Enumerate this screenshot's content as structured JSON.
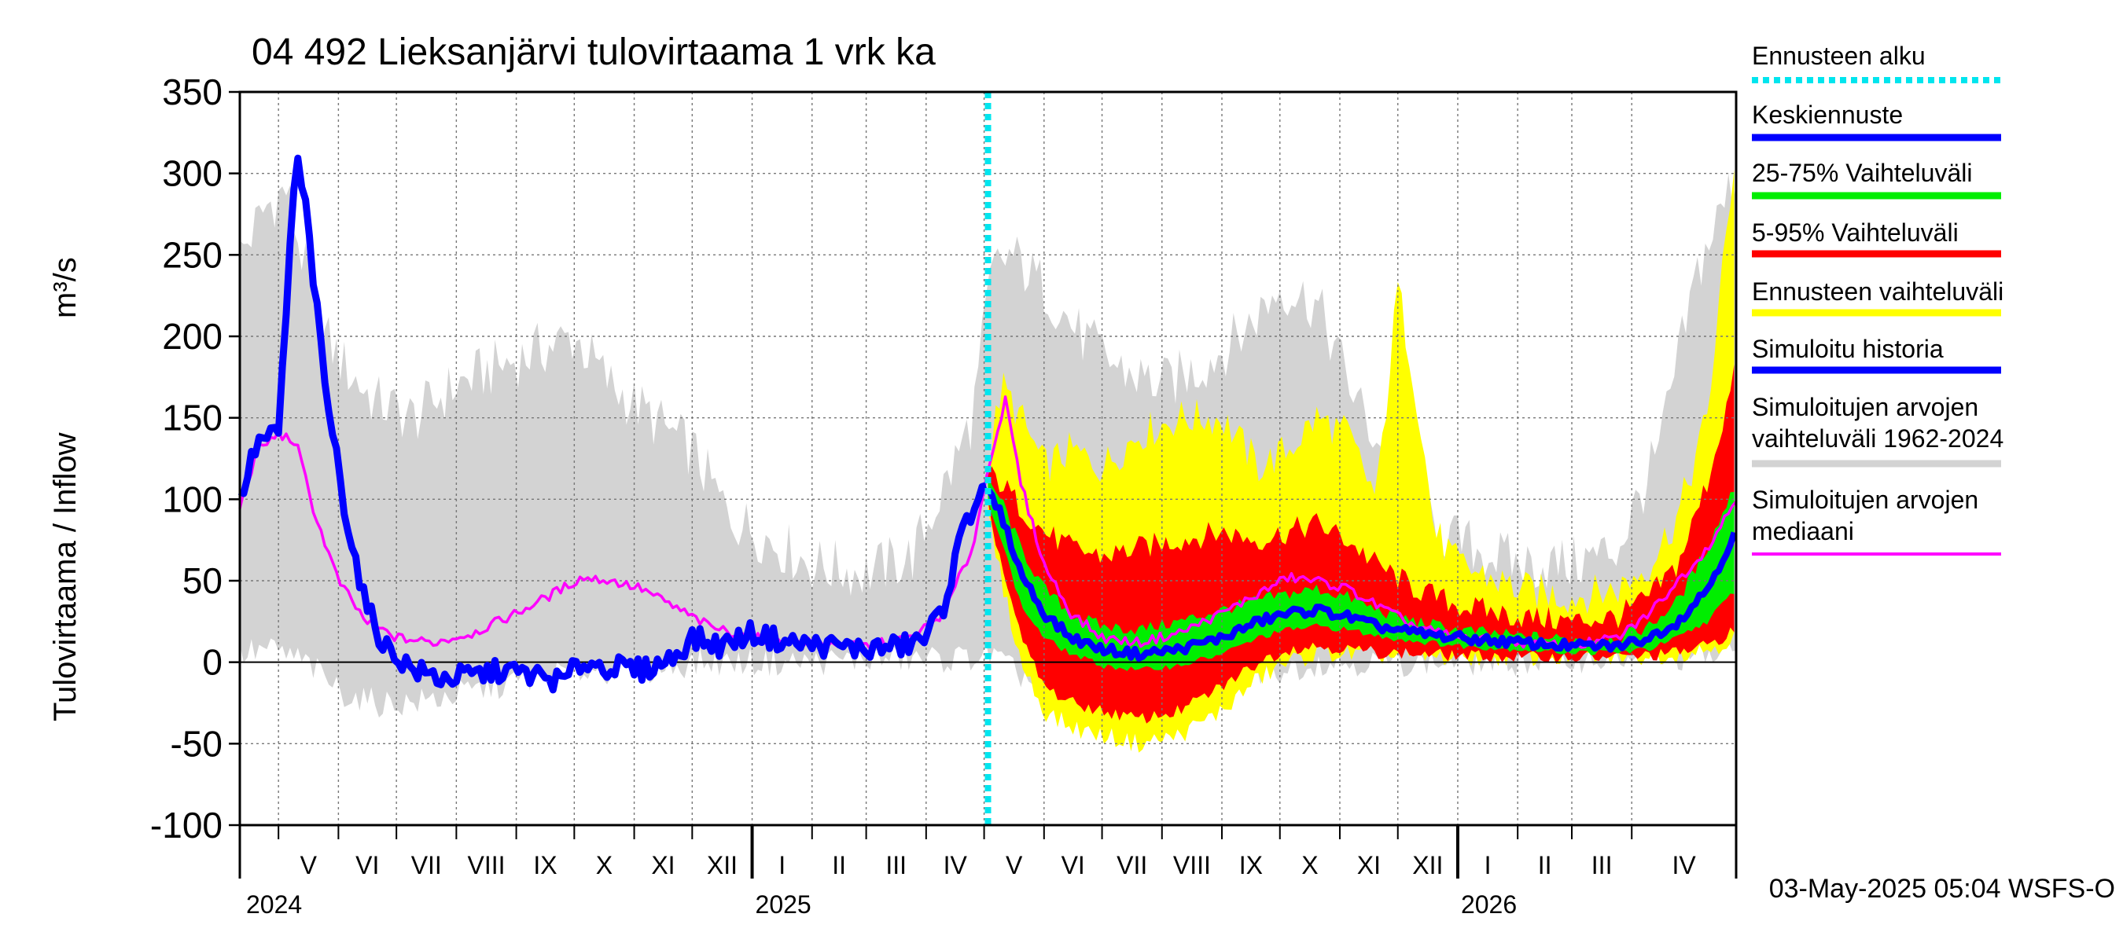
{
  "chart_data": {
    "type": "area",
    "title": "04 492 Lieksanjärvi tulovirtaama 1 vrk ka",
    "ylabel_main": "Tulovirtaama / Inflow",
    "ylabel_unit": "m³/s",
    "ylim": [
      -100,
      350
    ],
    "yticks": [
      "350",
      "300",
      "250",
      "200",
      "150",
      "100",
      "50",
      "0",
      "-50",
      "-100"
    ],
    "x_range": [
      "2024-04-11",
      "2026-05-25"
    ],
    "forecast_start": "2025-05-03",
    "grid": true,
    "legend_position": "right",
    "months": [
      {
        "label": "V",
        "start": "2024-05-01"
      },
      {
        "label": "VI",
        "start": "2024-06-01"
      },
      {
        "label": "VII",
        "start": "2024-07-01"
      },
      {
        "label": "VIII",
        "start": "2024-08-01"
      },
      {
        "label": "IX",
        "start": "2024-09-01"
      },
      {
        "label": "X",
        "start": "2024-10-01"
      },
      {
        "label": "XI",
        "start": "2024-11-01"
      },
      {
        "label": "XII",
        "start": "2024-12-01"
      },
      {
        "label": "I",
        "start": "2025-01-01"
      },
      {
        "label": "II",
        "start": "2025-02-01"
      },
      {
        "label": "III",
        "start": "2025-03-01"
      },
      {
        "label": "IV",
        "start": "2025-04-01"
      },
      {
        "label": "V",
        "start": "2025-05-01"
      },
      {
        "label": "VI",
        "start": "2025-06-01"
      },
      {
        "label": "VII",
        "start": "2025-07-01"
      },
      {
        "label": "VIII",
        "start": "2025-08-01"
      },
      {
        "label": "IX",
        "start": "2025-09-01"
      },
      {
        "label": "X",
        "start": "2025-10-01"
      },
      {
        "label": "XI",
        "start": "2025-11-01"
      },
      {
        "label": "XII",
        "start": "2025-12-01"
      },
      {
        "label": "I",
        "start": "2026-01-01"
      },
      {
        "label": "II",
        "start": "2026-02-01"
      },
      {
        "label": "III",
        "start": "2026-03-01"
      },
      {
        "label": "IV",
        "start": "2026-04-01"
      }
    ],
    "years": [
      {
        "label": "2024",
        "start": "2024-04-11"
      },
      {
        "label": "2025",
        "start": "2025-01-01"
      },
      {
        "label": "2026",
        "start": "2026-01-01"
      }
    ],
    "legend": [
      {
        "label": "Ennusteen alku",
        "color": "#00e5ee",
        "style": "dotted"
      },
      {
        "label": "Keskiennuste",
        "color": "#0000ff",
        "style": "solid"
      },
      {
        "label": "25-75% Vaihteluväli",
        "color": "#00ee00",
        "style": "solid"
      },
      {
        "label": "5-95% Vaihteluväli",
        "color": "#ff0000",
        "style": "solid"
      },
      {
        "label": "Ennusteen vaihteluväli",
        "color": "#ffff00",
        "style": "solid"
      },
      {
        "label": "Simuloitu historia",
        "color": "#0000ff",
        "style": "solid"
      },
      {
        "label": "Simuloitujen arvojen\nvaihteluväli 1962-2024",
        "color": "#d3d3d3",
        "style": "solid"
      },
      {
        "label": "Simuloitujen arvojen\nmediaani",
        "color": "#ff00ff",
        "style": "solid"
      }
    ],
    "series": {
      "historical_range_1962_2024": {
        "x": [
          "2024-04-11",
          "2024-04-25",
          "2024-05-05",
          "2024-05-15",
          "2024-05-25",
          "2024-06-05",
          "2024-06-20",
          "2024-07-10",
          "2024-08-01",
          "2024-08-20",
          "2024-09-10",
          "2024-10-01",
          "2024-10-20",
          "2024-11-10",
          "2024-12-01",
          "2024-12-20",
          "2025-01-10",
          "2025-02-01",
          "2025-03-01",
          "2025-03-25",
          "2025-04-15",
          "2025-04-25",
          "2025-05-05",
          "2025-05-15",
          "2025-06-01",
          "2025-06-20",
          "2025-07-10",
          "2025-08-01",
          "2025-08-20",
          "2025-09-10",
          "2025-10-01",
          "2025-10-20",
          "2025-11-10",
          "2025-12-01",
          "2025-12-20",
          "2026-01-10",
          "2026-02-01",
          "2026-03-01",
          "2026-03-25",
          "2026-04-15",
          "2026-05-05",
          "2026-05-25"
        ],
        "low": [
          5,
          8,
          5,
          0,
          -10,
          -20,
          -25,
          -25,
          -20,
          -15,
          -10,
          -5,
          -5,
          -5,
          0,
          0,
          0,
          0,
          2,
          2,
          2,
          3,
          5,
          -5,
          -15,
          -25,
          -30,
          -25,
          -20,
          -10,
          -5,
          0,
          0,
          0,
          0,
          0,
          0,
          2,
          2,
          2,
          3,
          5
        ],
        "high": [
          250,
          280,
          290,
          240,
          200,
          180,
          160,
          150,
          170,
          180,
          190,
          200,
          170,
          150,
          130,
          90,
          75,
          60,
          55,
          65,
          120,
          150,
          240,
          250,
          230,
          200,
          180,
          170,
          180,
          200,
          230,
          220,
          160,
          110,
          80,
          70,
          60,
          60,
          70,
          130,
          240,
          300
        ]
      },
      "simulated_history": {
        "x": [
          "2024-04-11",
          "2024-04-20",
          "2024-05-01",
          "2024-05-10",
          "2024-05-15",
          "2024-05-25",
          "2024-06-05",
          "2024-06-15",
          "2024-06-25",
          "2024-07-10",
          "2024-07-25",
          "2024-08-10",
          "2024-08-25",
          "2024-09-10",
          "2024-09-25",
          "2024-10-05",
          "2024-10-20",
          "2024-11-05",
          "2024-11-20",
          "2024-12-01",
          "2024-12-15",
          "2025-01-01",
          "2025-01-20",
          "2025-02-10",
          "2025-03-01",
          "2025-03-20",
          "2025-04-01",
          "2025-04-10",
          "2025-04-20",
          "2025-04-25",
          "2025-05-01",
          "2025-05-03"
        ],
        "values": [
          100,
          135,
          140,
          310,
          280,
          170,
          90,
          35,
          10,
          -5,
          -10,
          -8,
          -5,
          -8,
          -12,
          0,
          -3,
          -5,
          2,
          15,
          10,
          18,
          12,
          10,
          8,
          10,
          15,
          35,
          80,
          95,
          110,
          95
        ]
      },
      "median": {
        "x": [
          "2024-04-11",
          "2024-04-20",
          "2024-05-01",
          "2024-05-10",
          "2024-05-20",
          "2024-06-01",
          "2024-06-15",
          "2024-07-01",
          "2024-07-20",
          "2024-08-10",
          "2024-09-01",
          "2024-09-20",
          "2024-10-05",
          "2024-10-20",
          "2024-11-05",
          "2024-11-20",
          "2024-12-10",
          "2025-01-01",
          "2025-02-01",
          "2025-03-01",
          "2025-03-25",
          "2025-04-10",
          "2025-04-25",
          "2025-05-05",
          "2025-05-12",
          "2025-05-20",
          "2025-06-01",
          "2025-06-15",
          "2025-07-01",
          "2025-07-20",
          "2025-08-10",
          "2025-09-01",
          "2025-09-20",
          "2025-10-05",
          "2025-10-20",
          "2025-11-05",
          "2025-11-20",
          "2025-12-10",
          "2026-01-01",
          "2026-02-01",
          "2026-03-01",
          "2026-03-25",
          "2026-04-10",
          "2026-04-25",
          "2026-05-10",
          "2026-05-25"
        ],
        "values": [
          95,
          130,
          140,
          135,
          90,
          50,
          25,
          15,
          12,
          18,
          30,
          42,
          52,
          50,
          45,
          35,
          22,
          15,
          12,
          10,
          15,
          30,
          70,
          130,
          160,
          110,
          60,
          30,
          15,
          12,
          18,
          30,
          42,
          52,
          50,
          45,
          35,
          22,
          15,
          12,
          10,
          15,
          30,
          50,
          70,
          100
        ]
      },
      "forecast_mean": {
        "x": [
          "2025-05-03",
          "2025-05-10",
          "2025-05-20",
          "2025-06-01",
          "2025-06-15",
          "2025-07-01",
          "2025-07-20",
          "2025-08-10",
          "2025-09-01",
          "2025-09-20",
          "2025-10-05",
          "2025-10-20",
          "2025-11-05",
          "2025-11-20",
          "2025-12-10",
          "2026-01-01",
          "2026-02-01",
          "2026-03-01",
          "2026-03-25",
          "2026-04-10",
          "2026-04-25",
          "2026-05-10",
          "2026-05-25"
        ],
        "values": [
          105,
          90,
          55,
          30,
          15,
          8,
          5,
          8,
          15,
          25,
          30,
          32,
          28,
          22,
          18,
          15,
          12,
          10,
          10,
          15,
          25,
          45,
          80
        ]
      },
      "forecast_25_75": {
        "x": [
          "2025-05-03",
          "2025-05-10",
          "2025-05-20",
          "2025-06-01",
          "2025-06-15",
          "2025-07-01",
          "2025-07-20",
          "2025-08-10",
          "2025-09-01",
          "2025-09-20",
          "2025-10-05",
          "2025-10-20",
          "2025-11-05",
          "2025-11-20",
          "2025-12-10",
          "2026-01-01",
          "2026-02-01",
          "2026-03-01",
          "2026-03-25",
          "2026-04-10",
          "2026-04-25",
          "2026-05-10",
          "2026-05-25"
        ],
        "low": [
          100,
          75,
          35,
          15,
          5,
          -2,
          -5,
          -2,
          5,
          15,
          20,
          22,
          20,
          16,
          13,
          10,
          8,
          6,
          6,
          8,
          15,
          25,
          45
        ],
        "high": [
          110,
          100,
          70,
          45,
          30,
          22,
          20,
          25,
          32,
          38,
          42,
          45,
          40,
          32,
          25,
          20,
          16,
          14,
          15,
          22,
          38,
          70,
          110
        ]
      },
      "forecast_5_95": {
        "x": [
          "2025-05-03",
          "2025-05-10",
          "2025-05-20",
          "2025-06-01",
          "2025-06-15",
          "2025-07-01",
          "2025-07-20",
          "2025-08-10",
          "2025-09-01",
          "2025-09-20",
          "2025-10-05",
          "2025-10-20",
          "2025-11-05",
          "2025-11-20",
          "2025-12-10",
          "2026-01-01",
          "2026-02-01",
          "2026-03-01",
          "2026-03-25",
          "2026-04-10",
          "2026-04-25",
          "2026-05-10",
          "2026-05-25"
        ],
        "low": [
          95,
          60,
          15,
          -15,
          -25,
          -30,
          -35,
          -30,
          -15,
          0,
          8,
          10,
          8,
          6,
          5,
          4,
          3,
          3,
          3,
          4,
          6,
          10,
          20
        ],
        "high": [
          115,
          110,
          95,
          80,
          70,
          65,
          70,
          75,
          80,
          75,
          80,
          85,
          75,
          60,
          45,
          35,
          28,
          25,
          28,
          40,
          60,
          110,
          180
        ]
      },
      "forecast_range": {
        "x": [
          "2025-05-03",
          "2025-05-10",
          "2025-05-20",
          "2025-06-01",
          "2025-06-15",
          "2025-07-01",
          "2025-07-20",
          "2025-08-10",
          "2025-09-01",
          "2025-09-20",
          "2025-10-05",
          "2025-10-20",
          "2025-11-05",
          "2025-11-20",
          "2025-12-01",
          "2025-12-10",
          "2025-12-20",
          "2026-01-01",
          "2026-02-01",
          "2026-03-01",
          "2026-03-25",
          "2026-04-10",
          "2026-04-25",
          "2026-05-10",
          "2026-05-25"
        ],
        "low": [
          90,
          50,
          0,
          -30,
          -40,
          -45,
          -50,
          -45,
          -30,
          -10,
          0,
          5,
          5,
          4,
          4,
          4,
          3,
          3,
          3,
          3,
          3,
          4,
          5,
          8,
          15
        ],
        "high": [
          120,
          170,
          150,
          120,
          130,
          120,
          140,
          150,
          150,
          120,
          130,
          150,
          140,
          100,
          230,
          170,
          80,
          60,
          45,
          40,
          45,
          60,
          90,
          150,
          320
        ]
      }
    },
    "timestamp": "03-May-2025 05:04 WSFS-O"
  }
}
